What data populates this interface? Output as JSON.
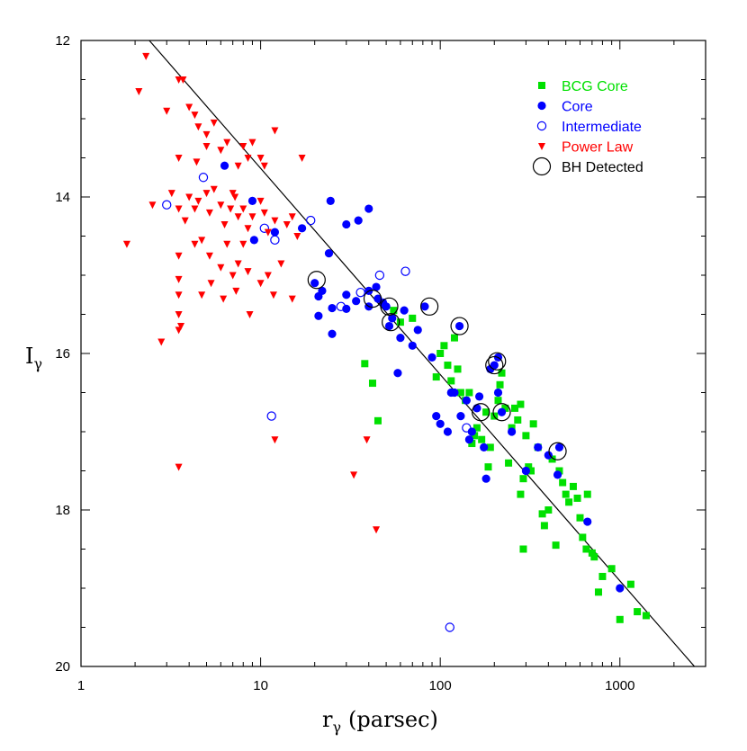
{
  "chart_data": {
    "type": "scatter",
    "xscale": "log",
    "xlim": [
      1,
      3000
    ],
    "ylim": [
      20,
      12
    ],
    "y_inverted": true,
    "xlabel": "r",
    "xlabel_sub": "γ",
    "xlabel_unit": "(parsec)",
    "ylabel": "I",
    "ylabel_sub": "γ",
    "x_ticks": [
      {
        "value": 1,
        "label": "1"
      },
      {
        "value": 10,
        "label": "10"
      },
      {
        "value": 100,
        "label": "100"
      },
      {
        "value": 1000,
        "label": "1000"
      }
    ],
    "y_ticks": [
      {
        "value": 12,
        "label": "12"
      },
      {
        "value": 14,
        "label": "14"
      },
      {
        "value": 16,
        "label": "16"
      },
      {
        "value": 18,
        "label": "18"
      },
      {
        "value": 20,
        "label": "20"
      }
    ],
    "legend_position": "top-right",
    "fit_line": {
      "x": [
        2.4,
        2600
      ],
      "y": [
        12.0,
        20.0
      ],
      "color": "#000000"
    },
    "series": [
      {
        "name": "BCG Core",
        "marker": "square",
        "color": "#00e000",
        "points": [
          [
            38,
            16.13
          ],
          [
            42,
            16.38
          ],
          [
            45,
            16.86
          ],
          [
            55,
            15.45
          ],
          [
            60,
            15.6
          ],
          [
            70,
            15.55
          ],
          [
            95,
            16.3
          ],
          [
            100,
            16.0
          ],
          [
            105,
            15.9
          ],
          [
            110,
            16.15
          ],
          [
            115,
            16.35
          ],
          [
            120,
            15.8
          ],
          [
            125,
            16.2
          ],
          [
            130,
            16.5
          ],
          [
            138,
            16.6
          ],
          [
            145,
            16.5
          ],
          [
            150,
            17.15
          ],
          [
            155,
            17.05
          ],
          [
            160,
            16.95
          ],
          [
            170,
            17.1
          ],
          [
            180,
            16.75
          ],
          [
            185,
            17.45
          ],
          [
            190,
            17.2
          ],
          [
            200,
            16.8
          ],
          [
            210,
            16.6
          ],
          [
            215,
            16.4
          ],
          [
            220,
            16.25
          ],
          [
            230,
            16.7
          ],
          [
            240,
            17.4
          ],
          [
            250,
            16.95
          ],
          [
            260,
            16.7
          ],
          [
            270,
            16.85
          ],
          [
            280,
            16.65
          ],
          [
            290,
            17.6
          ],
          [
            300,
            17.05
          ],
          [
            310,
            17.45
          ],
          [
            320,
            17.5
          ],
          [
            330,
            16.9
          ],
          [
            350,
            17.2
          ],
          [
            370,
            18.05
          ],
          [
            380,
            18.2
          ],
          [
            400,
            18.0
          ],
          [
            420,
            17.35
          ],
          [
            440,
            18.45
          ],
          [
            460,
            17.5
          ],
          [
            480,
            17.65
          ],
          [
            500,
            17.8
          ],
          [
            520,
            17.9
          ],
          [
            550,
            17.7
          ],
          [
            580,
            17.85
          ],
          [
            600,
            18.1
          ],
          [
            620,
            18.35
          ],
          [
            650,
            18.5
          ],
          [
            660,
            17.8
          ],
          [
            700,
            18.55
          ],
          [
            720,
            18.6
          ],
          [
            760,
            19.05
          ],
          [
            800,
            18.85
          ],
          [
            1000,
            19.4
          ],
          [
            1150,
            18.95
          ],
          [
            1250,
            19.3
          ],
          [
            1400,
            19.35
          ],
          [
            900,
            18.75
          ],
          [
            280,
            17.8
          ],
          [
            290,
            18.5
          ]
        ]
      },
      {
        "name": "Core",
        "marker": "filled-circle",
        "color": "#0000ff",
        "points": [
          [
            6.3,
            13.6
          ],
          [
            9,
            14.05
          ],
          [
            9.2,
            14.55
          ],
          [
            12,
            14.45
          ],
          [
            17,
            14.4
          ],
          [
            20,
            15.1
          ],
          [
            21,
            15.27
          ],
          [
            21,
            15.52
          ],
          [
            22,
            15.2
          ],
          [
            24,
            14.72
          ],
          [
            24.5,
            14.05
          ],
          [
            25,
            15.75
          ],
          [
            25,
            15.42
          ],
          [
            30,
            14.35
          ],
          [
            30,
            15.25
          ],
          [
            30,
            15.43
          ],
          [
            35,
            14.3
          ],
          [
            40,
            14.15
          ],
          [
            40,
            15.2
          ],
          [
            40,
            15.4
          ],
          [
            45,
            15.3
          ],
          [
            48,
            15.35
          ],
          [
            50,
            15.4
          ],
          [
            52,
            15.65
          ],
          [
            54,
            15.55
          ],
          [
            58,
            16.25
          ],
          [
            60,
            15.8
          ],
          [
            63,
            15.45
          ],
          [
            70,
            15.9
          ],
          [
            75,
            15.7
          ],
          [
            82,
            15.4
          ],
          [
            90,
            16.05
          ],
          [
            95,
            16.8
          ],
          [
            100,
            16.9
          ],
          [
            110,
            17.0
          ],
          [
            115,
            16.5
          ],
          [
            120,
            16.5
          ],
          [
            128,
            15.65
          ],
          [
            130,
            16.8
          ],
          [
            140,
            16.6
          ],
          [
            145,
            17.1
          ],
          [
            150,
            17.0
          ],
          [
            160,
            16.7
          ],
          [
            165,
            16.55
          ],
          [
            175,
            17.2
          ],
          [
            180,
            17.6
          ],
          [
            190,
            16.2
          ],
          [
            200,
            16.15
          ],
          [
            210,
            16.05
          ],
          [
            210,
            16.5
          ],
          [
            220,
            16.75
          ],
          [
            250,
            17.0
          ],
          [
            300,
            17.5
          ],
          [
            350,
            17.2
          ],
          [
            400,
            17.3
          ],
          [
            450,
            17.55
          ],
          [
            460,
            17.2
          ],
          [
            660,
            18.15
          ],
          [
            1000,
            19.0
          ],
          [
            34,
            15.33
          ],
          [
            44,
            15.15
          ]
        ]
      },
      {
        "name": "Intermediate",
        "marker": "open-circle",
        "color": "#0000ff",
        "points": [
          [
            3,
            14.1
          ],
          [
            4.8,
            13.75
          ],
          [
            10.5,
            14.4
          ],
          [
            12,
            14.55
          ],
          [
            19,
            14.3
          ],
          [
            28,
            15.4
          ],
          [
            36,
            15.22
          ],
          [
            46,
            15.0
          ],
          [
            64,
            14.95
          ],
          [
            11.5,
            16.8
          ],
          [
            140,
            16.95
          ],
          [
            113,
            19.5
          ]
        ]
      },
      {
        "name": "Power Law",
        "marker": "triangle",
        "color": "#ff0000",
        "points": [
          [
            2.3,
            12.2
          ],
          [
            2.1,
            12.65
          ],
          [
            3.0,
            12.9
          ],
          [
            3.5,
            12.5
          ],
          [
            3.7,
            12.5
          ],
          [
            4.0,
            12.85
          ],
          [
            4.3,
            12.95
          ],
          [
            4.5,
            13.1
          ],
          [
            3.5,
            13.5
          ],
          [
            4.4,
            13.55
          ],
          [
            5.0,
            13.2
          ],
          [
            5.0,
            13.35
          ],
          [
            5.5,
            13.05
          ],
          [
            6.0,
            13.4
          ],
          [
            6.5,
            13.3
          ],
          [
            7.5,
            13.6
          ],
          [
            7.0,
            13.95
          ],
          [
            8.0,
            13.35
          ],
          [
            8.5,
            13.5
          ],
          [
            9.0,
            13.3
          ],
          [
            10.0,
            13.5
          ],
          [
            10.5,
            13.6
          ],
          [
            12.0,
            13.15
          ],
          [
            17.0,
            13.5
          ],
          [
            2.5,
            14.1
          ],
          [
            3.2,
            13.95
          ],
          [
            3.5,
            14.15
          ],
          [
            3.8,
            14.3
          ],
          [
            4.0,
            14.0
          ],
          [
            4.3,
            14.15
          ],
          [
            4.5,
            14.05
          ],
          [
            5.0,
            13.95
          ],
          [
            5.2,
            14.2
          ],
          [
            5.5,
            13.9
          ],
          [
            6.0,
            14.1
          ],
          [
            6.3,
            14.35
          ],
          [
            6.8,
            14.15
          ],
          [
            7.2,
            14.0
          ],
          [
            7.5,
            14.25
          ],
          [
            8.0,
            14.15
          ],
          [
            8.5,
            14.4
          ],
          [
            9.0,
            14.25
          ],
          [
            10.0,
            14.05
          ],
          [
            10.5,
            14.2
          ],
          [
            11.0,
            14.45
          ],
          [
            12.0,
            14.3
          ],
          [
            14.0,
            14.35
          ],
          [
            15.0,
            14.25
          ],
          [
            16.0,
            14.5
          ],
          [
            1.8,
            14.6
          ],
          [
            3.5,
            14.75
          ],
          [
            4.3,
            14.6
          ],
          [
            4.7,
            14.55
          ],
          [
            5.2,
            14.75
          ],
          [
            6.0,
            14.9
          ],
          [
            6.5,
            14.6
          ],
          [
            7.0,
            15.0
          ],
          [
            7.5,
            14.85
          ],
          [
            8.0,
            14.6
          ],
          [
            8.5,
            14.95
          ],
          [
            10.0,
            15.1
          ],
          [
            11.0,
            15.0
          ],
          [
            11.8,
            15.25
          ],
          [
            13.0,
            14.85
          ],
          [
            15.0,
            15.3
          ],
          [
            3.5,
            15.05
          ],
          [
            3.5,
            15.25
          ],
          [
            3.5,
            15.5
          ],
          [
            3.5,
            15.7
          ],
          [
            3.6,
            15.65
          ],
          [
            4.7,
            15.25
          ],
          [
            5.3,
            15.1
          ],
          [
            6.2,
            15.3
          ],
          [
            7.3,
            15.2
          ],
          [
            8.7,
            15.5
          ],
          [
            2.8,
            15.85
          ],
          [
            3.5,
            17.45
          ],
          [
            12.0,
            17.1
          ],
          [
            33,
            17.55
          ],
          [
            39,
            17.1
          ],
          [
            44,
            18.25
          ]
        ]
      },
      {
        "name": "BH Detected",
        "marker": "large-open-circle",
        "color": "#000000",
        "points": [
          [
            20.5,
            15.06
          ],
          [
            42,
            15.3
          ],
          [
            52,
            15.4
          ],
          [
            53,
            15.6
          ],
          [
            87,
            15.4
          ],
          [
            128,
            15.65
          ],
          [
            168,
            16.75
          ],
          [
            200,
            16.15
          ],
          [
            207,
            16.1
          ],
          [
            220,
            16.75
          ],
          [
            450,
            17.25
          ]
        ]
      }
    ]
  }
}
